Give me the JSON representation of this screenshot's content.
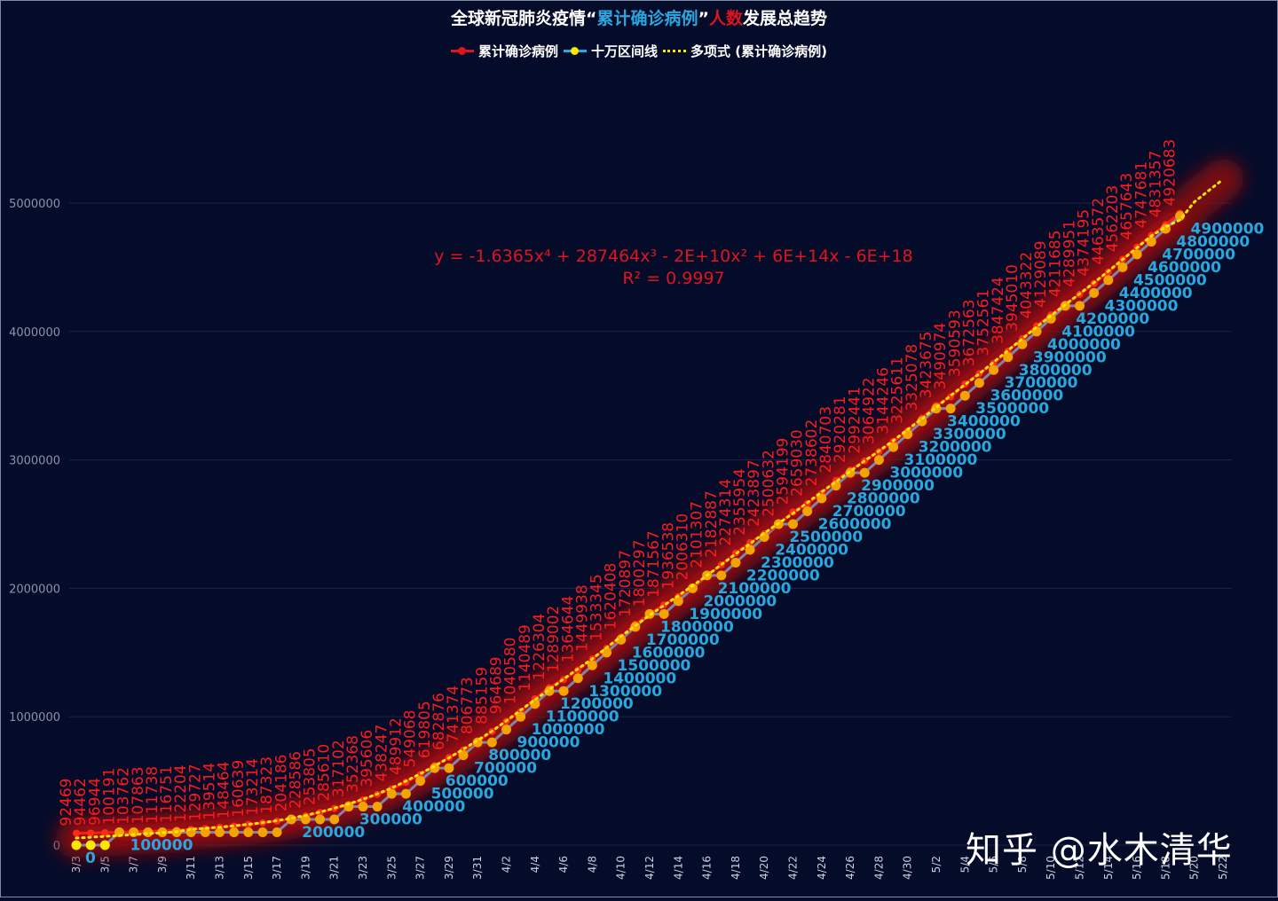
{
  "title": {
    "prefix": "全球新冠肺炎疫情“",
    "blue": "累计确诊病例",
    "mid": "”",
    "red": "人数",
    "suffix": "发展总趋势"
  },
  "legend": [
    {
      "label": "累计确诊病例",
      "color": "#e0141e",
      "marker": "#e0141e"
    },
    {
      "label": "十万区间线",
      "color": "#29a8e0",
      "marker": "#ffe600"
    },
    {
      "label": "多项式 (累计确诊病例)",
      "color": "#ffe600"
    }
  ],
  "trendline": {
    "equation": "y = -1.6365x⁴ + 287464x³ - 2E+10x² + 6E+14x - 6E+18",
    "r2": "R² = 0.9997"
  },
  "watermark": "知乎 @水木清华",
  "chart_data": {
    "type": "line",
    "title": "全球新冠肺炎疫情“累计确诊病例”人数发展总趋势",
    "xlabel": "",
    "ylabel": "",
    "ylim": [
      0,
      5000000
    ],
    "yticks": [
      0,
      1000000,
      2000000,
      3000000,
      4000000,
      5000000
    ],
    "grid": true,
    "legend_position": "top",
    "x_tick_labels": [
      "3/3",
      "3/5",
      "3/7",
      "3/9",
      "3/11",
      "3/13",
      "3/15",
      "3/17",
      "3/19",
      "3/21",
      "3/23",
      "3/25",
      "3/27",
      "3/29",
      "3/31",
      "4/2",
      "4/4",
      "4/6",
      "4/8",
      "4/10",
      "4/12",
      "4/14",
      "4/16",
      "4/18",
      "4/20",
      "4/22",
      "4/24",
      "4/26",
      "4/28",
      "4/30",
      "5/2",
      "5/4",
      "5/6",
      "5/8",
      "5/10",
      "5/12",
      "5/14",
      "5/16",
      "5/18",
      "5/20",
      "5/22"
    ],
    "x": [
      "3/3",
      "3/4",
      "3/5",
      "3/6",
      "3/7",
      "3/8",
      "3/9",
      "3/10",
      "3/11",
      "3/12",
      "3/13",
      "3/14",
      "3/15",
      "3/16",
      "3/17",
      "3/18",
      "3/19",
      "3/20",
      "3/21",
      "3/22",
      "3/23",
      "3/24",
      "3/25",
      "3/26",
      "3/27",
      "3/28",
      "3/29",
      "3/30",
      "3/31",
      "4/1",
      "4/2",
      "4/3",
      "4/4",
      "4/5",
      "4/6",
      "4/7",
      "4/8",
      "4/9",
      "4/10",
      "4/11",
      "4/12",
      "4/13",
      "4/14",
      "4/15",
      "4/16",
      "4/17",
      "4/18",
      "4/19",
      "4/20",
      "4/21",
      "4/22",
      "4/23",
      "4/24",
      "4/25",
      "4/26",
      "4/27",
      "4/28",
      "4/29",
      "4/30",
      "5/1",
      "5/2",
      "5/3",
      "5/4",
      "5/5",
      "5/6",
      "5/7",
      "5/8",
      "5/9",
      "5/10",
      "5/11",
      "5/12",
      "5/13",
      "5/14",
      "5/15",
      "5/16",
      "5/17",
      "5/18",
      "5/19"
    ],
    "series": [
      {
        "name": "累计确诊病例",
        "color": "#e0141e",
        "values": [
          92469,
          94462,
          96944,
          100191,
          103762,
          107863,
          111738,
          116751,
          122204,
          129727,
          139514,
          148464,
          160639,
          173214,
          187323,
          204186,
          228586,
          253805,
          285610,
          317102,
          352368,
          395606,
          438247,
          489912,
          549068,
          619805,
          682876,
          741374,
          806773,
          885159,
          964689,
          1040580,
          1140489,
          1226304,
          1289002,
          1364644,
          1449938,
          1533345,
          1620408,
          1720897,
          1800297,
          1871567,
          1936538,
          2006310,
          2101307,
          2182887,
          2274314,
          2355954,
          2423897,
          2500632,
          2594199,
          2659030,
          2738602,
          2840703,
          2920281,
          2992441,
          3064922,
          3144246,
          3225611,
          3325078,
          3423675,
          3490974,
          3590593,
          3672563,
          3752561,
          3847424,
          3945010,
          4043322,
          4129089,
          4211685,
          4289951,
          4374195,
          4463572,
          4562203,
          4657643,
          4747681,
          4831357,
          4920683
        ]
      },
      {
        "name": "十万区间线",
        "color": "#29a8e0",
        "values": [
          0,
          0,
          0,
          100000,
          100000,
          100000,
          100000,
          100000,
          100000,
          100000,
          100000,
          100000,
          100000,
          100000,
          100000,
          200000,
          200000,
          200000,
          200000,
          300000,
          300000,
          300000,
          400000,
          400000,
          500000,
          600000,
          600000,
          700000,
          800000,
          800000,
          900000,
          1000000,
          1100000,
          1200000,
          1200000,
          1300000,
          1400000,
          1500000,
          1600000,
          1700000,
          1800000,
          1800000,
          1900000,
          2000000,
          2100000,
          2100000,
          2200000,
          2300000,
          2400000,
          2500000,
          2500000,
          2600000,
          2700000,
          2800000,
          2900000,
          2900000,
          3000000,
          3100000,
          3200000,
          3300000,
          3400000,
          3400000,
          3500000,
          3600000,
          3700000,
          3800000,
          3900000,
          4000000,
          4100000,
          4200000,
          4200000,
          4300000,
          4400000,
          4500000,
          4600000,
          4700000,
          4800000,
          4900000
        ],
        "labels": [
          "0",
          "100000",
          "200000",
          "300000",
          "400000",
          "500000",
          "600000",
          "700000",
          "800000",
          "900000",
          "1000000",
          "1100000",
          "1200000",
          "1300000",
          "1400000",
          "1500000",
          "1600000",
          "1700000",
          "1800000",
          "1900000",
          "2000000",
          "2100000",
          "2200000",
          "2300000",
          "2400000",
          "2500000",
          "2600000",
          "2700000",
          "2800000",
          "2900000",
          "3000000",
          "3100000",
          "3200000",
          "3300000",
          "3400000",
          "3500000",
          "3600000",
          "3700000",
          "3800000",
          "3900000",
          "4000000",
          "4100000",
          "4200000",
          "4300000",
          "4400000",
          "4500000",
          "4600000",
          "4700000",
          "4800000",
          "4900000"
        ]
      },
      {
        "name": "多项式 (累计确诊病例)",
        "color": "#ffe600",
        "type": "trendline",
        "order": 4,
        "extends_to": "5/22"
      }
    ]
  }
}
